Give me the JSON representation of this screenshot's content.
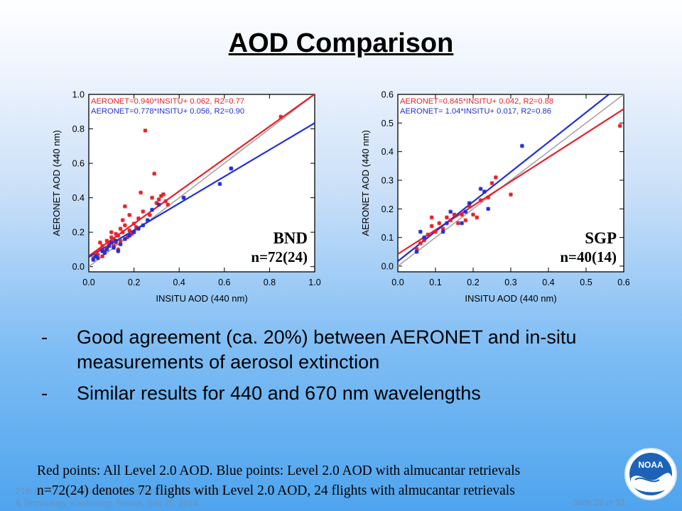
{
  "slide": {
    "title": "AOD Comparison",
    "bullets": [
      "Good agreement (ca. 20%) between AERONET and in-situ measurements of aerosol extinction",
      "Similar results for 440 and 670 nm wavelengths"
    ],
    "bullet_marker": "-",
    "notes": [
      "Red points: All Level 2.0 AOD. Blue points: Level 2.0 AOD with almucantar retrievals",
      "n=72(24) denotes 72 flights with Level 2.0 AOD, 24 flights with almucantar retrievals"
    ],
    "footer_left": [
      "21th Int. Conf. on Nucleation and Atmospheric Aerosols",
      "& Technology, Kaohsiung, Taiwan, Sep 25, 2014"
    ],
    "footer_right": "Slide 28 of 32",
    "logo_text": "NOAA"
  },
  "chart_data": [
    {
      "type": "scatter",
      "site_label": "BND",
      "count_label": "n=72(24)",
      "xlabel": "INSITU AOD (440 nm)",
      "ylabel": "AERONET AOD (440 nm)",
      "xlim": [
        0,
        1.0
      ],
      "ylim": [
        -0.03,
        1.0
      ],
      "xticks": [
        "0.0",
        "0.2",
        "0.4",
        "0.6",
        "0.8",
        "1.0"
      ],
      "yticks": [
        "0.0",
        "0.2",
        "0.4",
        "0.6",
        "0.8",
        "1.0"
      ],
      "grid": false,
      "fits": [
        {
          "label": "AERONET=0.940*INSITU+ 0.062, R2=0.77",
          "color": "#e8202a",
          "slope": 0.94,
          "intercept": 0.062
        },
        {
          "label": "AERONET=0.778*INSITU+ 0.056, R2=0.90",
          "color": "#1f2fd6",
          "slope": 0.778,
          "intercept": 0.056
        }
      ],
      "one_to_one_color": "#a6a6a6",
      "series": [
        {
          "color": "#e8202a",
          "points": [
            [
              0.02,
              0.05
            ],
            [
              0.03,
              0.08
            ],
            [
              0.04,
              0.07
            ],
            [
              0.05,
              0.1
            ],
            [
              0.05,
              0.14
            ],
            [
              0.06,
              0.06
            ],
            [
              0.06,
              0.12
            ],
            [
              0.07,
              0.09
            ],
            [
              0.08,
              0.15
            ],
            [
              0.08,
              0.11
            ],
            [
              0.09,
              0.13
            ],
            [
              0.1,
              0.17
            ],
            [
              0.1,
              0.2
            ],
            [
              0.11,
              0.12
            ],
            [
              0.11,
              0.16
            ],
            [
              0.12,
              0.19
            ],
            [
              0.12,
              0.14
            ],
            [
              0.13,
              0.18
            ],
            [
              0.13,
              0.1
            ],
            [
              0.14,
              0.22
            ],
            [
              0.14,
              0.15
            ],
            [
              0.15,
              0.2
            ],
            [
              0.15,
              0.27
            ],
            [
              0.16,
              0.35
            ],
            [
              0.16,
              0.24
            ],
            [
              0.17,
              0.17
            ],
            [
              0.18,
              0.3
            ],
            [
              0.18,
              0.21
            ],
            [
              0.19,
              0.19
            ],
            [
              0.2,
              0.25
            ],
            [
              0.21,
              0.23
            ],
            [
              0.22,
              0.28
            ],
            [
              0.23,
              0.43
            ],
            [
              0.24,
              0.32
            ],
            [
              0.25,
              0.79
            ],
            [
              0.27,
              0.3
            ],
            [
              0.28,
              0.4
            ],
            [
              0.29,
              0.54
            ],
            [
              0.3,
              0.37
            ],
            [
              0.31,
              0.39
            ],
            [
              0.32,
              0.41
            ],
            [
              0.33,
              0.42
            ],
            [
              0.34,
              0.38
            ],
            [
              0.35,
              0.36
            ],
            [
              0.42,
              0.4
            ],
            [
              0.63,
              0.57
            ],
            [
              0.85,
              0.87
            ]
          ]
        },
        {
          "color": "#1f2fd6",
          "points": [
            [
              0.02,
              0.04
            ],
            [
              0.03,
              0.06
            ],
            [
              0.04,
              0.05
            ],
            [
              0.06,
              0.09
            ],
            [
              0.07,
              0.08
            ],
            [
              0.08,
              0.1
            ],
            [
              0.09,
              0.12
            ],
            [
              0.1,
              0.14
            ],
            [
              0.11,
              0.11
            ],
            [
              0.12,
              0.15
            ],
            [
              0.13,
              0.09
            ],
            [
              0.14,
              0.13
            ],
            [
              0.16,
              0.16
            ],
            [
              0.18,
              0.18
            ],
            [
              0.2,
              0.2
            ],
            [
              0.22,
              0.22
            ],
            [
              0.24,
              0.24
            ],
            [
              0.26,
              0.27
            ],
            [
              0.28,
              0.33
            ],
            [
              0.31,
              0.36
            ],
            [
              0.42,
              0.4
            ],
            [
              0.58,
              0.48
            ],
            [
              0.63,
              0.57
            ]
          ]
        }
      ]
    },
    {
      "type": "scatter",
      "site_label": "SGP",
      "count_label": "n=40(14)",
      "xlabel": "INSITU AOD (440 nm)",
      "ylabel": "AERONET AOD (440 nm)",
      "xlim": [
        0,
        0.6
      ],
      "ylim": [
        -0.02,
        0.6
      ],
      "xticks": [
        "0.0",
        "0.1",
        "0.2",
        "0.3",
        "0.4",
        "0.5",
        "0.6"
      ],
      "yticks": [
        "0.0",
        "0.1",
        "0.2",
        "0.3",
        "0.4",
        "0.5",
        "0.6"
      ],
      "grid": false,
      "fits": [
        {
          "label": "AERONET=0.845*INSITU+ 0.042, R2=0.88",
          "color": "#e8202a",
          "slope": 0.845,
          "intercept": 0.042
        },
        {
          "label": "AERONET= 1.04*INSITU+ 0.017, R2=0.86",
          "color": "#1f2fd6",
          "slope": 1.04,
          "intercept": 0.017
        }
      ],
      "one_to_one_color": "#a6a6a6",
      "series": [
        {
          "color": "#e8202a",
          "points": [
            [
              0.05,
              0.06
            ],
            [
              0.06,
              0.08
            ],
            [
              0.07,
              0.09
            ],
            [
              0.08,
              0.11
            ],
            [
              0.09,
              0.14
            ],
            [
              0.09,
              0.17
            ],
            [
              0.1,
              0.12
            ],
            [
              0.11,
              0.15
            ],
            [
              0.12,
              0.13
            ],
            [
              0.13,
              0.17
            ],
            [
              0.14,
              0.16
            ],
            [
              0.15,
              0.18
            ],
            [
              0.16,
              0.15
            ],
            [
              0.17,
              0.18
            ],
            [
              0.18,
              0.16
            ],
            [
              0.19,
              0.21
            ],
            [
              0.2,
              0.18
            ],
            [
              0.21,
              0.17
            ],
            [
              0.22,
              0.23
            ],
            [
              0.23,
              0.26
            ],
            [
              0.24,
              0.24
            ],
            [
              0.25,
              0.29
            ],
            [
              0.26,
              0.31
            ],
            [
              0.3,
              0.25
            ],
            [
              0.59,
              0.49
            ]
          ]
        },
        {
          "color": "#1f2fd6",
          "points": [
            [
              0.05,
              0.05
            ],
            [
              0.06,
              0.12
            ],
            [
              0.07,
              0.1
            ],
            [
              0.12,
              0.12
            ],
            [
              0.13,
              0.15
            ],
            [
              0.14,
              0.19
            ],
            [
              0.17,
              0.15
            ],
            [
              0.18,
              0.19
            ],
            [
              0.19,
              0.22
            ],
            [
              0.22,
              0.27
            ],
            [
              0.23,
              0.26
            ],
            [
              0.24,
              0.2
            ],
            [
              0.33,
              0.42
            ]
          ]
        }
      ]
    }
  ]
}
